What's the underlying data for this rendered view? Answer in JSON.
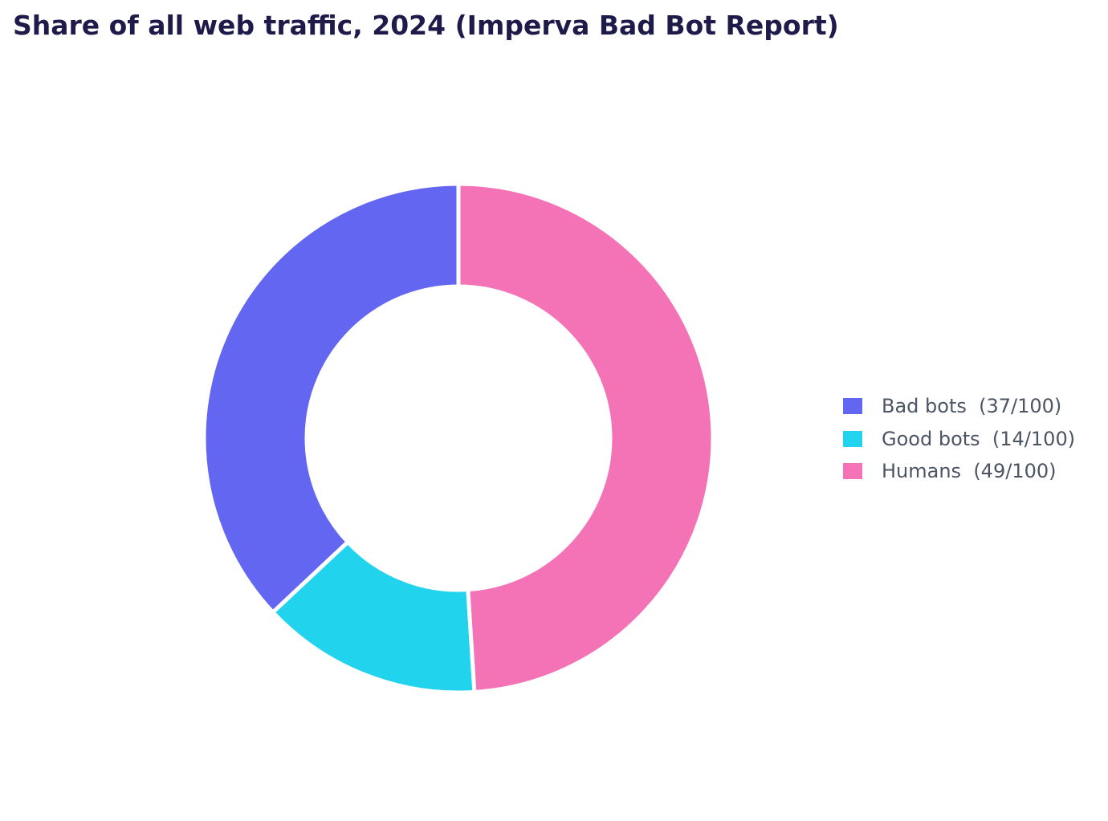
{
  "chart_data": {
    "type": "pie",
    "style": "donut",
    "title": "Share of all web traffic, 2024 (Imperva Bad Bot Report)",
    "slices": [
      {
        "label": "Bad bots",
        "legend_text": "Bad bots  (37/100)",
        "value": 37,
        "color": "#6366f1"
      },
      {
        "label": "Good bots",
        "legend_text": "Good bots  (14/100)",
        "value": 14,
        "color": "#22d3ee"
      },
      {
        "label": "Humans",
        "legend_text": "Humans  (49/100)",
        "value": 49,
        "color": "#f472b6"
      }
    ],
    "total": 100,
    "legend_position": "right",
    "grid": false
  }
}
